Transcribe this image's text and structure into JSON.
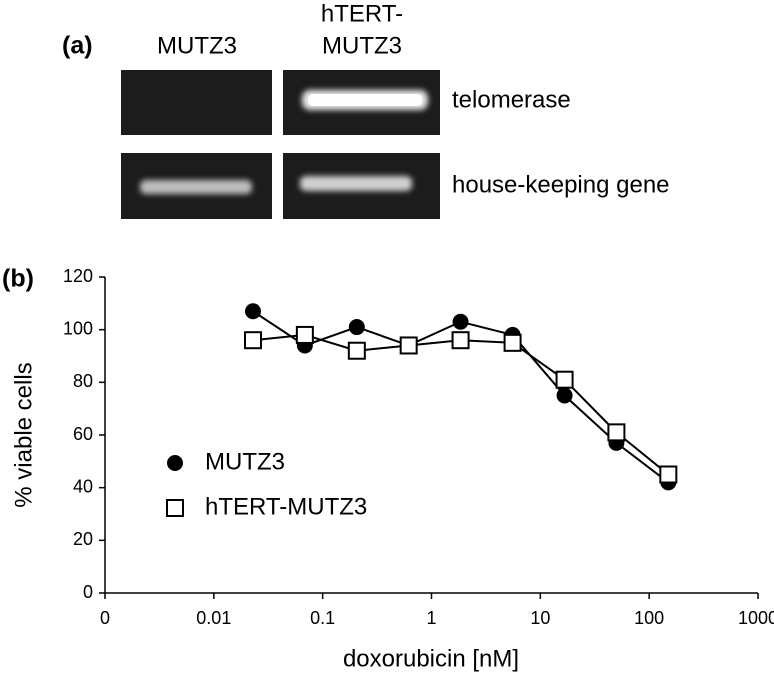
{
  "panel_a": {
    "label": "(a)",
    "columns": [
      "MUTZ3",
      [
        "hTERT-",
        "MUTZ3"
      ]
    ],
    "rows": [
      "telomerase",
      "house-keeping gene"
    ]
  },
  "chart_data": {
    "type": "line",
    "panel_label": "(b)",
    "x_label": "doxorubicin [nM]",
    "y_label": "% viable cells",
    "x": [
      0.0229,
      0.0686,
      0.206,
      0.617,
      1.85,
      5.56,
      16.7,
      50,
      150
    ],
    "series": [
      {
        "name": "MUTZ3",
        "color": "#000000",
        "marker": "circle",
        "values": [
          107,
          94,
          101,
          94,
          103,
          98,
          75,
          57,
          42
        ]
      },
      {
        "name": "hTERT-MUTZ3",
        "color": "#000000",
        "marker": "square",
        "values": [
          96,
          98,
          92,
          94,
          96,
          95,
          81,
          61,
          45
        ]
      }
    ],
    "xlog": true,
    "xlim": [
      0.001,
      1000
    ],
    "xticks": [
      {
        "value": 0.001,
        "label": "0"
      },
      0.01,
      0.1,
      1,
      10,
      100,
      1000
    ],
    "ylim": [
      0,
      120
    ],
    "yticks": [
      0,
      20,
      40,
      60,
      80,
      100,
      120
    ],
    "legend": "lower-left"
  }
}
